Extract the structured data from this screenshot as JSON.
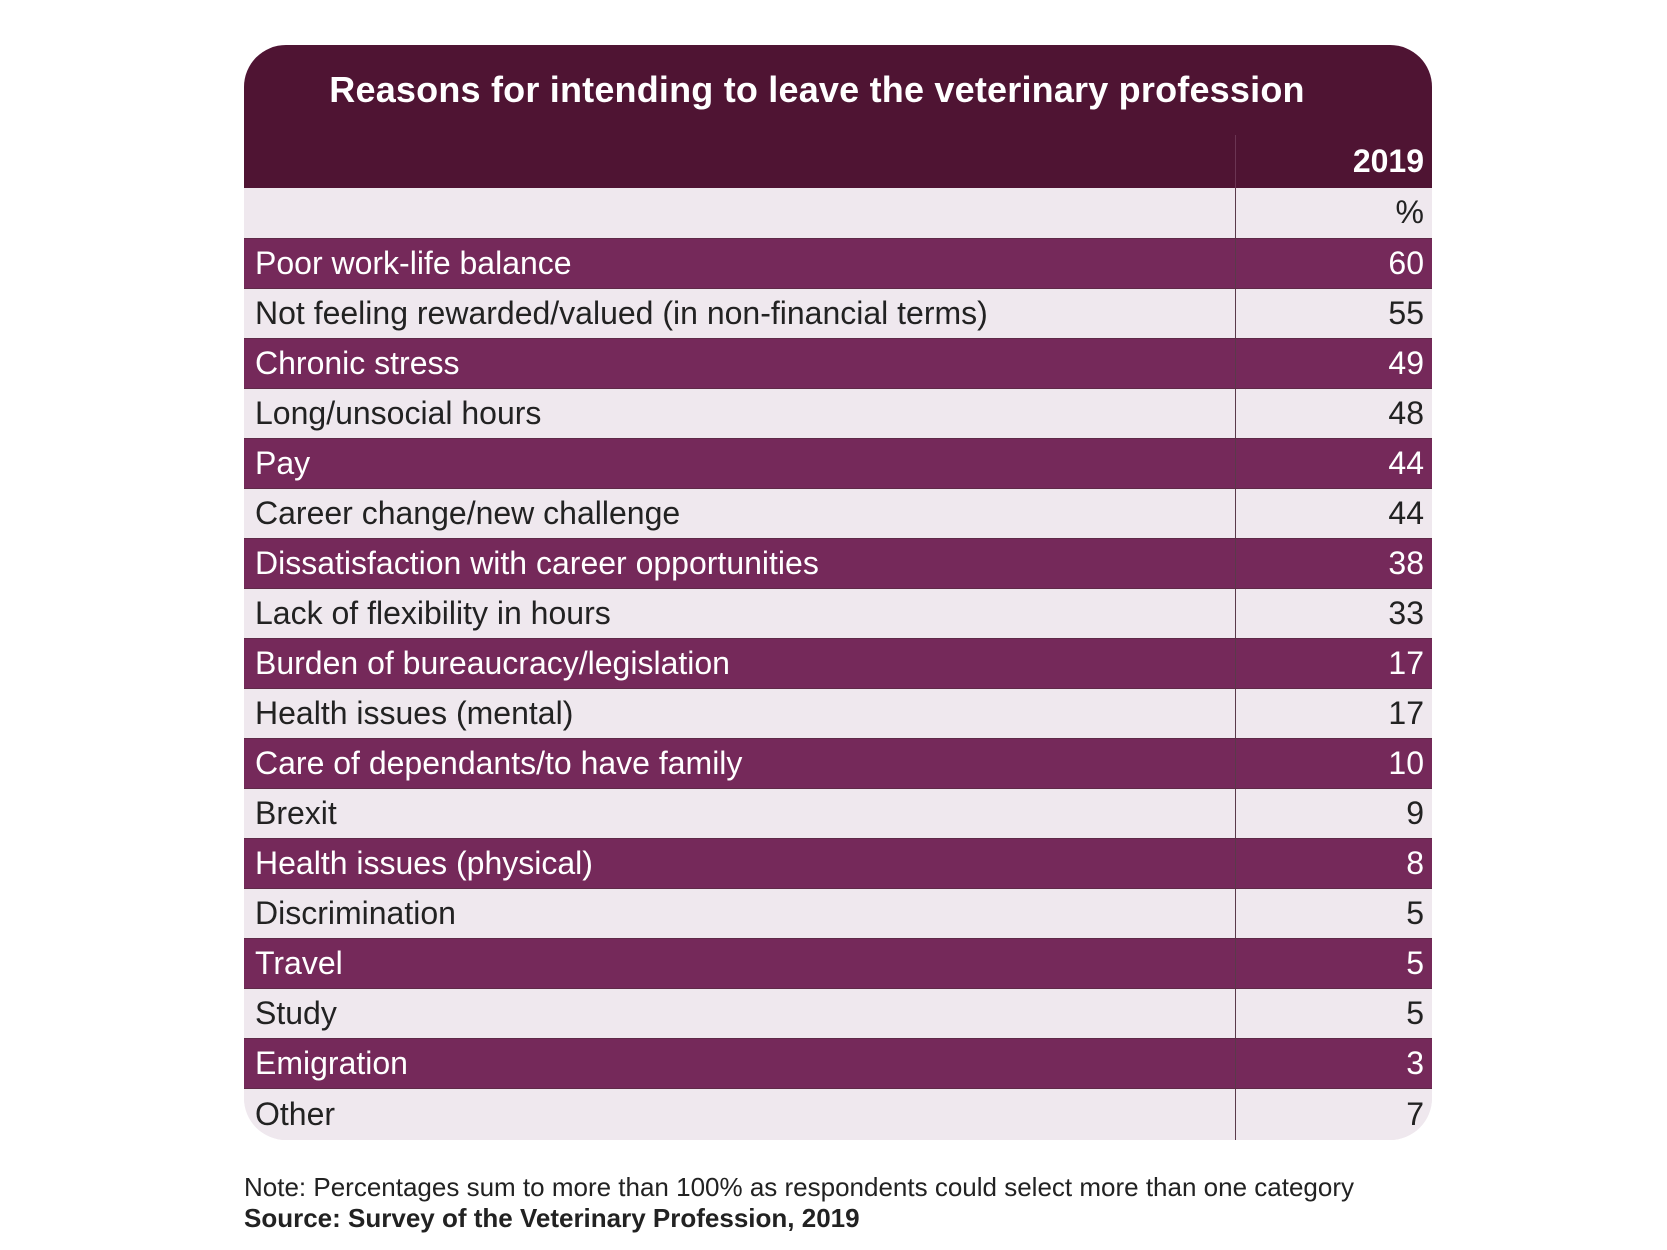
{
  "chart_data": {
    "type": "table",
    "title": "Reasons for intending to leave the veterinary profession",
    "column_header": "2019",
    "unit": "%",
    "rows": [
      {
        "label": "Poor work-life balance",
        "value": 60
      },
      {
        "label": "Not feeling rewarded/valued (in non-financial terms)",
        "value": 55
      },
      {
        "label": "Chronic stress",
        "value": 49
      },
      {
        "label": "Long/unsocial hours",
        "value": 48
      },
      {
        "label": "Pay",
        "value": 44
      },
      {
        "label": "Career change/new challenge",
        "value": 44
      },
      {
        "label": "Dissatisfaction with career opportunities",
        "value": 38
      },
      {
        "label": "Lack of flexibility in hours",
        "value": 33
      },
      {
        "label": "Burden of bureaucracy/legislation",
        "value": 17
      },
      {
        "label": "Health issues (mental)",
        "value": 17
      },
      {
        "label": "Care of dependants/to have family",
        "value": 10
      },
      {
        "label": "Brexit",
        "value": 9
      },
      {
        "label": "Health issues (physical)",
        "value": 8
      },
      {
        "label": "Discrimination",
        "value": 5
      },
      {
        "label": "Travel",
        "value": 5
      },
      {
        "label": "Study",
        "value": 5
      },
      {
        "label": "Emigration",
        "value": 3
      },
      {
        "label": "Other",
        "value": 7
      }
    ],
    "note": "Note: Percentages sum to more than 100% as respondents could select more than one category",
    "source": "Source: Survey of the Veterinary Profession, 2019"
  },
  "colors": {
    "header_band": "#4f1433",
    "dark_row": "#75295a",
    "light_row": "#efe8ee"
  }
}
